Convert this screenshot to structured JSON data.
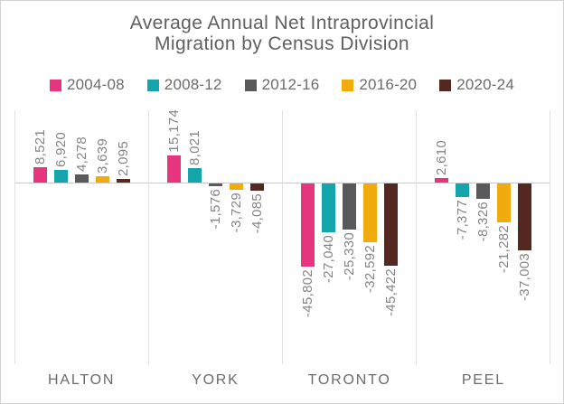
{
  "title": {
    "line1": "Average Annual Net Intraprovincial",
    "line2": "Migration by Census Division"
  },
  "chart_data": {
    "type": "bar",
    "title": "Average Annual Net Intraprovincial Migration by Census Division",
    "categories": [
      "HALTON",
      "YORK",
      "TORONTO",
      "PEEL"
    ],
    "series": [
      {
        "name": "2004-08",
        "color": "#e6347f",
        "values": [
          8521,
          15174,
          -45802,
          2610
        ],
        "value_labels": [
          "8,521",
          "15,174",
          "-45,802",
          "2,610"
        ]
      },
      {
        "name": "2008-12",
        "color": "#13a4ac",
        "values": [
          6920,
          8021,
          -27040,
          -7377
        ],
        "value_labels": [
          "6,920",
          "8,021",
          "-27,040",
          "-7,377"
        ]
      },
      {
        "name": "2012-16",
        "color": "#59595b",
        "values": [
          4278,
          -1576,
          -25330,
          -8326
        ],
        "value_labels": [
          "4,278",
          "-1,576",
          "-25,330",
          "-8,326"
        ]
      },
      {
        "name": "2016-20",
        "color": "#f1ab0c",
        "values": [
          3639,
          -3729,
          -32592,
          -21282
        ],
        "value_labels": [
          "3,639",
          "-3,729",
          "-32,592",
          "-21,282"
        ]
      },
      {
        "name": "2020-24",
        "color": "#542720",
        "values": [
          2095,
          -4085,
          -45422,
          -37003
        ],
        "value_labels": [
          "2,095",
          "-4,085",
          "-45,422",
          "-37,003"
        ]
      }
    ],
    "xlabel": "",
    "ylabel": "",
    "ylim": [
      -100000,
      40000
    ],
    "grid": "vertical category separators + zero baseline, no y-axis ticks",
    "legend_position": "top",
    "value_labels_rotated": true
  }
}
